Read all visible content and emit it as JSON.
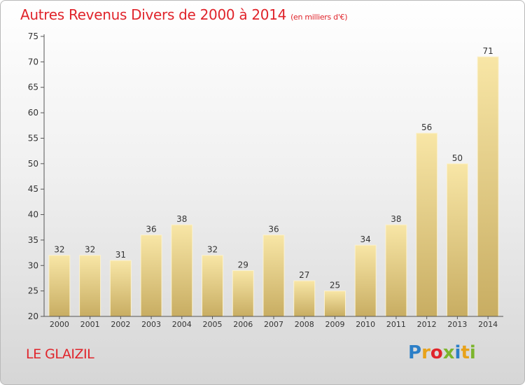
{
  "title": "Autres Revenus Divers de 2000 à 2014",
  "subtitle": "(en milliers d'€)",
  "town": "LE GLAIZIL",
  "logo_text": "Proxiti",
  "colors": {
    "title": "#e0242b",
    "bar_light": "#f8e6a6",
    "bar_dark": "#c8ad62",
    "axis": "#555555"
  },
  "chart_data": {
    "type": "bar",
    "categories": [
      "2000",
      "2001",
      "2002",
      "2003",
      "2004",
      "2005",
      "2006",
      "2007",
      "2008",
      "2009",
      "2010",
      "2011",
      "2012",
      "2013",
      "2014"
    ],
    "values": [
      32,
      32,
      31,
      36,
      38,
      32,
      29,
      36,
      27,
      25,
      34,
      38,
      56,
      50,
      71
    ],
    "ylim": [
      20,
      75
    ],
    "yticks": [
      20,
      25,
      30,
      35,
      40,
      45,
      50,
      55,
      60,
      65,
      70,
      75
    ],
    "grid": false,
    "data_labels": true
  }
}
